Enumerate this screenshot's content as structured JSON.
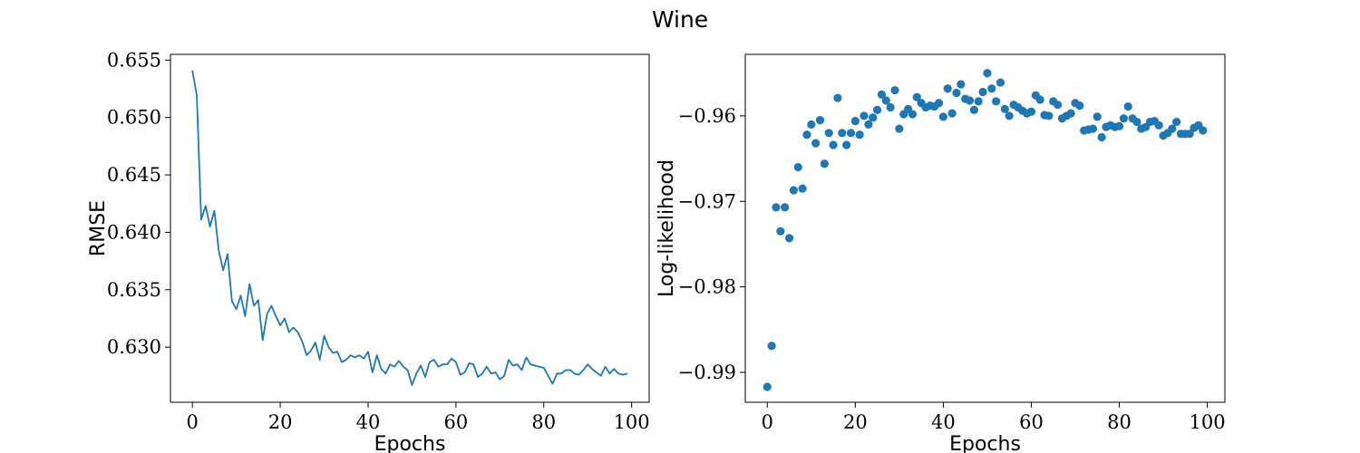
{
  "figure": {
    "title": "Wine"
  },
  "colors": {
    "series": "#1f77b4"
  },
  "chart_data": [
    {
      "type": "line",
      "title": "",
      "xlabel": "Epochs",
      "ylabel": "RMSE",
      "xlim": [
        -5,
        104
      ],
      "ylim": [
        0.6252,
        0.6555
      ],
      "xticks": [
        0,
        20,
        40,
        60,
        80,
        100
      ],
      "xtick_labels": [
        "0",
        "20",
        "40",
        "60",
        "80",
        "100"
      ],
      "yticks": [
        0.63,
        0.635,
        0.64,
        0.645,
        0.65,
        0.655
      ],
      "ytick_labels": [
        "0.630",
        "0.635",
        "0.640",
        "0.645",
        "0.650",
        "0.655"
      ],
      "grid": false,
      "x": [
        0,
        1,
        2,
        3,
        4,
        5,
        6,
        7,
        8,
        9,
        10,
        11,
        12,
        13,
        14,
        15,
        16,
        17,
        18,
        19,
        20,
        21,
        22,
        23,
        24,
        25,
        26,
        27,
        28,
        29,
        30,
        31,
        32,
        33,
        34,
        35,
        36,
        37,
        38,
        39,
        40,
        41,
        42,
        43,
        44,
        45,
        46,
        47,
        48,
        49,
        50,
        51,
        52,
        53,
        54,
        55,
        56,
        57,
        58,
        59,
        60,
        61,
        62,
        63,
        64,
        65,
        66,
        67,
        68,
        69,
        70,
        71,
        72,
        73,
        74,
        75,
        76,
        77,
        78,
        79,
        80,
        81,
        82,
        83,
        84,
        85,
        86,
        87,
        88,
        89,
        90,
        91,
        92,
        93,
        94,
        95,
        96,
        97,
        98,
        99
      ],
      "y": [
        0.6541,
        0.6519,
        0.6411,
        0.6423,
        0.6405,
        0.6419,
        0.6384,
        0.6367,
        0.6381,
        0.634,
        0.6333,
        0.6345,
        0.6327,
        0.6355,
        0.6336,
        0.6341,
        0.6306,
        0.6329,
        0.6336,
        0.6327,
        0.6319,
        0.6325,
        0.6313,
        0.6317,
        0.6313,
        0.6305,
        0.6293,
        0.6297,
        0.6304,
        0.6289,
        0.631,
        0.63,
        0.6295,
        0.6296,
        0.6287,
        0.6289,
        0.6293,
        0.6291,
        0.6293,
        0.629,
        0.6296,
        0.6278,
        0.6293,
        0.6281,
        0.6277,
        0.6285,
        0.6283,
        0.6288,
        0.6283,
        0.628,
        0.6267,
        0.6277,
        0.6284,
        0.6274,
        0.6287,
        0.6289,
        0.6283,
        0.6285,
        0.6285,
        0.629,
        0.6287,
        0.6276,
        0.6278,
        0.6286,
        0.6285,
        0.6274,
        0.6277,
        0.6283,
        0.6277,
        0.6278,
        0.6272,
        0.6275,
        0.6289,
        0.6284,
        0.6285,
        0.628,
        0.6291,
        0.6285,
        0.6284,
        0.6283,
        0.6282,
        0.6275,
        0.6268,
        0.6277,
        0.6277,
        0.628,
        0.628,
        0.6277,
        0.6276,
        0.628,
        0.6285,
        0.6281,
        0.6278,
        0.6275,
        0.6283,
        0.6277,
        0.6281,
        0.6277,
        0.6276,
        0.6277
      ]
    },
    {
      "type": "scatter",
      "title": "",
      "xlabel": "Epochs",
      "ylabel": "Log-likelihood",
      "xlim": [
        -5,
        104
      ],
      "ylim": [
        -0.9935,
        -0.9528
      ],
      "xticks": [
        0,
        20,
        40,
        60,
        80,
        100
      ],
      "xtick_labels": [
        "0",
        "20",
        "40",
        "60",
        "80",
        "100"
      ],
      "yticks": [
        -0.99,
        -0.98,
        -0.97,
        -0.96
      ],
      "ytick_labels": [
        "−0.99",
        "−0.98",
        "−0.97",
        "−0.96"
      ],
      "grid": false,
      "x": [
        0,
        1,
        2,
        3,
        4,
        5,
        6,
        7,
        8,
        9,
        10,
        11,
        12,
        13,
        14,
        15,
        16,
        17,
        18,
        19,
        20,
        21,
        22,
        23,
        24,
        25,
        26,
        27,
        28,
        29,
        30,
        31,
        32,
        33,
        34,
        35,
        36,
        37,
        38,
        39,
        40,
        41,
        42,
        43,
        44,
        45,
        46,
        47,
        48,
        49,
        50,
        51,
        52,
        53,
        54,
        55,
        56,
        57,
        58,
        59,
        60,
        61,
        62,
        63,
        64,
        65,
        66,
        67,
        68,
        69,
        70,
        71,
        72,
        73,
        74,
        75,
        76,
        77,
        78,
        79,
        80,
        81,
        82,
        83,
        84,
        85,
        86,
        87,
        88,
        89,
        90,
        91,
        92,
        93,
        94,
        95,
        96,
        97,
        98,
        99
      ],
      "y": [
        -0.9917,
        -0.9869,
        -0.9707,
        -0.9735,
        -0.9707,
        -0.9743,
        -0.9687,
        -0.966,
        -0.9685,
        -0.9622,
        -0.961,
        -0.9632,
        -0.9605,
        -0.9656,
        -0.962,
        -0.9634,
        -0.9579,
        -0.962,
        -0.9634,
        -0.962,
        -0.9606,
        -0.9622,
        -0.96,
        -0.961,
        -0.9602,
        -0.9593,
        -0.9575,
        -0.9582,
        -0.959,
        -0.957,
        -0.9615,
        -0.9598,
        -0.9592,
        -0.9598,
        -0.9578,
        -0.9585,
        -0.959,
        -0.9588,
        -0.9589,
        -0.9585,
        -0.9601,
        -0.9568,
        -0.9597,
        -0.9573,
        -0.9563,
        -0.958,
        -0.9582,
        -0.9593,
        -0.9583,
        -0.9572,
        -0.955,
        -0.9568,
        -0.9583,
        -0.9561,
        -0.9592,
        -0.96,
        -0.9587,
        -0.959,
        -0.9594,
        -0.9597,
        -0.9595,
        -0.9576,
        -0.9581,
        -0.9599,
        -0.96,
        -0.9583,
        -0.9587,
        -0.9603,
        -0.96,
        -0.9597,
        -0.9585,
        -0.9588,
        -0.9617,
        -0.9616,
        -0.9615,
        -0.9601,
        -0.9625,
        -0.9613,
        -0.9611,
        -0.9613,
        -0.9612,
        -0.9603,
        -0.9589,
        -0.9603,
        -0.9607,
        -0.9615,
        -0.9613,
        -0.9607,
        -0.9606,
        -0.9611,
        -0.9623,
        -0.962,
        -0.9615,
        -0.9607,
        -0.9621,
        -0.9621,
        -0.9621,
        -0.9614,
        -0.9611,
        -0.9617
      ]
    }
  ]
}
